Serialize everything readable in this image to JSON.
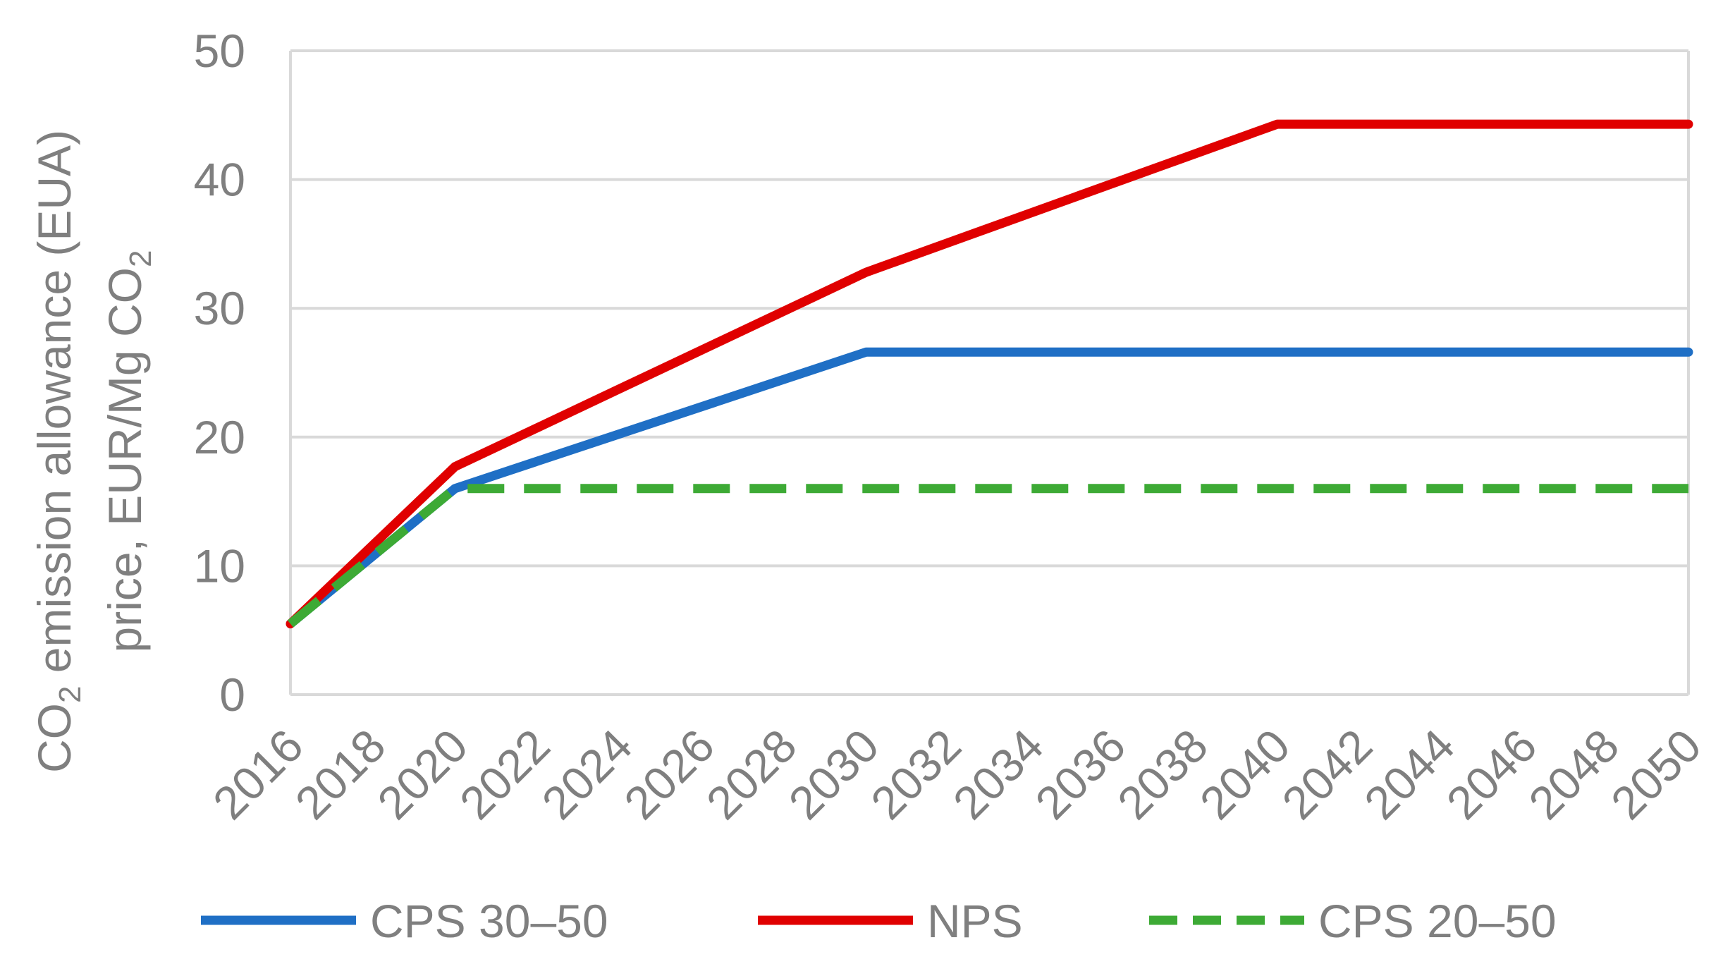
{
  "chart_data": {
    "type": "line",
    "ylabel_line1": "CO",
    "ylabel_sub1": "2",
    "ylabel_line1_rest": " emission allowance (EUA)",
    "ylabel_line2": "price, EUR/Mg CO",
    "ylabel_sub2": "2",
    "xlim": [
      2016,
      2050
    ],
    "ylim": [
      0,
      50
    ],
    "yticks": [
      "0",
      "10",
      "20",
      "30",
      "40",
      "50"
    ],
    "xticks": [
      "2016",
      "2018",
      "2020",
      "2022",
      "2024",
      "2026",
      "2028",
      "2030",
      "2032",
      "2034",
      "2036",
      "2038",
      "2040",
      "2042",
      "2044",
      "2046",
      "2048",
      "2050"
    ],
    "grid": true,
    "legend_position": "bottom",
    "series": [
      {
        "name": "CPS 30–50",
        "color": "#1f6fc5",
        "dash": false,
        "x": [
          2016,
          2020,
          2030,
          2050
        ],
        "y": [
          5.5,
          16,
          26.6,
          26.6
        ]
      },
      {
        "name": "NPS",
        "color": "#e00000",
        "dash": false,
        "x": [
          2016,
          2020,
          2030,
          2040,
          2050
        ],
        "y": [
          5.5,
          17.7,
          32.8,
          44.3,
          44.3
        ]
      },
      {
        "name": "CPS 20–50",
        "color": "#3daa35",
        "dash": true,
        "x": [
          2016,
          2020,
          2050
        ],
        "y": [
          5.5,
          16,
          16
        ]
      }
    ]
  }
}
